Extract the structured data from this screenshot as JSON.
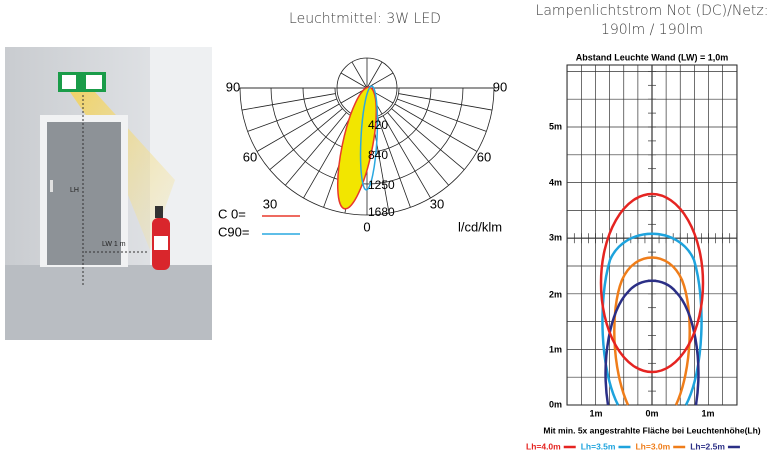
{
  "illustration": {
    "height_label": "LH",
    "distance_label": "LW 1 m"
  },
  "polar": {
    "title": "Leuchtmittel: 3W LED",
    "angle_labels": [
      "90",
      "90",
      "60",
      "60",
      "30",
      "30",
      "0"
    ],
    "radial_labels": [
      "420",
      "840",
      "1250",
      "1680"
    ],
    "legend": [
      {
        "label": "C  0=",
        "color": "#e8392c"
      },
      {
        "label": "C90=",
        "color": "#29a8e0"
      }
    ],
    "unit": "l/cd/klm"
  },
  "coverage": {
    "title_lines": [
      "Lampenlichtstrom Not (DC)/Netz:",
      "190lm / 190lm"
    ],
    "subtitle": "Abstand Leuchte Wand (LW) = 1,0m",
    "y_labels": [
      "5m",
      "4m",
      "3m",
      "2m",
      "1m",
      "0m"
    ],
    "x_labels": [
      "1m",
      "0m",
      "1m"
    ],
    "caption": "Mit min. 5x angestrahlte Fläche bei Leuchtenhöhe(Lh)",
    "legend": [
      {
        "label": "Lh=4.0m",
        "color": "#e52421"
      },
      {
        "label": "Lh=3.5m",
        "color": "#1ea3dd"
      },
      {
        "label": "Lh=3.0m",
        "color": "#ef7d1a"
      },
      {
        "label": "Lh=2.5m",
        "color": "#2b2f86"
      }
    ]
  }
}
